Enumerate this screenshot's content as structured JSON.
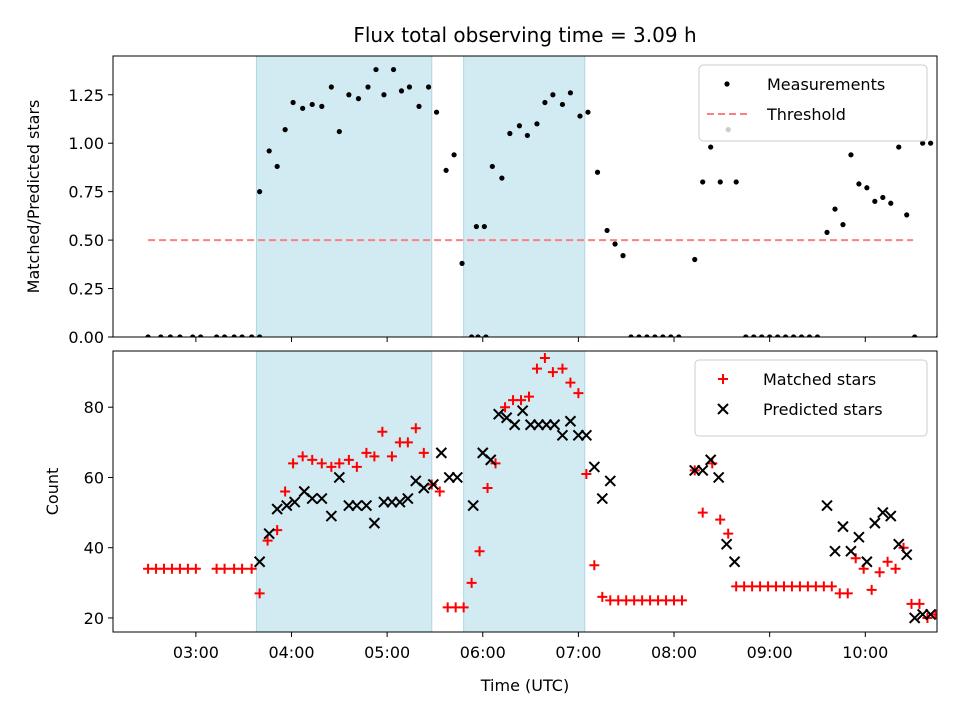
{
  "figure": {
    "title": "Flux total observing time = 3.09 h",
    "xlabel": "Time (UTC)"
  },
  "chart_data": [
    {
      "type": "scatter",
      "panel": "top",
      "ylabel": "Matched/Predicted stars",
      "x_domain": [
        "02:08",
        "10:45"
      ],
      "ylim": [
        0,
        1.45
      ],
      "yticks": [
        0,
        0.25,
        0.5,
        0.75,
        1.0,
        1.25
      ],
      "ytick_labels": [
        "0.00",
        "0.25",
        "0.50",
        "0.75",
        "1.00",
        "1.25"
      ],
      "shaded_intervals": [
        [
          "03:38",
          "05:28"
        ],
        [
          "05:48",
          "07:04"
        ]
      ],
      "shade_color": "#add8e6",
      "legend_position": "top-right",
      "series": [
        {
          "name": "Measurements",
          "marker": "dot",
          "color": "#000000",
          "points": [
            [
              "02:30",
              0
            ],
            [
              "02:38",
              0
            ],
            [
              "02:44",
              0
            ],
            [
              "02:50",
              0
            ],
            [
              "02:58",
              0
            ],
            [
              "03:03",
              0
            ],
            [
              "03:13",
              0
            ],
            [
              "03:18",
              0
            ],
            [
              "03:24",
              0
            ],
            [
              "03:29",
              0
            ],
            [
              "03:35",
              0
            ],
            [
              "03:40",
              0
            ],
            [
              "03:40",
              0.75
            ],
            [
              "03:46",
              0.96
            ],
            [
              "03:51",
              0.88
            ],
            [
              "03:56",
              1.07
            ],
            [
              "04:01",
              1.21
            ],
            [
              "04:07",
              1.18
            ],
            [
              "04:13",
              1.2
            ],
            [
              "04:19",
              1.19
            ],
            [
              "04:25",
              1.29
            ],
            [
              "04:30",
              1.06
            ],
            [
              "04:36",
              1.25
            ],
            [
              "04:42",
              1.23
            ],
            [
              "04:48",
              1.29
            ],
            [
              "04:53",
              1.38
            ],
            [
              "04:58",
              1.25
            ],
            [
              "05:04",
              1.38
            ],
            [
              "05:09",
              1.27
            ],
            [
              "05:14",
              1.29
            ],
            [
              "05:20",
              1.19
            ],
            [
              "05:26",
              1.29
            ],
            [
              "05:31",
              1.16
            ],
            [
              "05:37",
              0.86
            ],
            [
              "05:42",
              0.94
            ],
            [
              "05:47",
              0.38
            ],
            [
              "05:53",
              0
            ],
            [
              "05:57",
              0
            ],
            [
              "06:02",
              0
            ],
            [
              "05:56",
              0.57
            ],
            [
              "06:01",
              0.57
            ],
            [
              "06:06",
              0.88
            ],
            [
              "06:12",
              0.82
            ],
            [
              "06:17",
              1.05
            ],
            [
              "06:23",
              1.09
            ],
            [
              "06:28",
              1.04
            ],
            [
              "06:34",
              1.1
            ],
            [
              "06:39",
              1.21
            ],
            [
              "06:44",
              1.25
            ],
            [
              "06:50",
              1.2
            ],
            [
              "06:55",
              1.26
            ],
            [
              "07:01",
              1.14
            ],
            [
              "07:06",
              1.16
            ],
            [
              "07:12",
              0.85
            ],
            [
              "07:18",
              0.55
            ],
            [
              "07:23",
              0.48
            ],
            [
              "07:28",
              0.42
            ],
            [
              "07:33",
              0
            ],
            [
              "07:38",
              0
            ],
            [
              "07:43",
              0
            ],
            [
              "07:48",
              0
            ],
            [
              "07:53",
              0
            ],
            [
              "07:58",
              0
            ],
            [
              "08:03",
              0
            ],
            [
              "08:13",
              0.4
            ],
            [
              "08:18",
              0.8
            ],
            [
              "08:23",
              0.98
            ],
            [
              "08:29",
              0.8
            ],
            [
              "08:34",
              1.07
            ],
            [
              "08:39",
              0.8
            ],
            [
              "08:45",
              0
            ],
            [
              "08:50",
              0
            ],
            [
              "08:55",
              0
            ],
            [
              "09:00",
              0
            ],
            [
              "09:05",
              0
            ],
            [
              "09:10",
              0
            ],
            [
              "09:15",
              0
            ],
            [
              "09:20",
              0
            ],
            [
              "09:25",
              0
            ],
            [
              "09:30",
              0
            ],
            [
              "09:36",
              0.54
            ],
            [
              "09:41",
              0.66
            ],
            [
              "09:46",
              0.58
            ],
            [
              "09:51",
              0.94
            ],
            [
              "09:56",
              0.79
            ],
            [
              "10:01",
              0.77
            ],
            [
              "10:06",
              0.7
            ],
            [
              "10:11",
              0.72
            ],
            [
              "10:16",
              0.69
            ],
            [
              "10:21",
              0.98
            ],
            [
              "10:26",
              0.63
            ],
            [
              "10:31",
              0
            ],
            [
              "10:36",
              1.0
            ],
            [
              "10:41",
              1.0
            ],
            [
              "10:46",
              0
            ]
          ]
        },
        {
          "name": "Threshold",
          "marker": "dashed-line",
          "color": "#ff7f7f",
          "points": [
            [
              "02:30",
              0.5
            ],
            [
              "10:30",
              0.5
            ]
          ]
        }
      ]
    },
    {
      "type": "scatter",
      "panel": "bottom",
      "ylabel": "Count",
      "x_domain": [
        "02:08",
        "10:45"
      ],
      "xticks": [
        "03:00",
        "04:00",
        "05:00",
        "06:00",
        "07:00",
        "08:00",
        "09:00",
        "10:00"
      ],
      "ylim": [
        16,
        96
      ],
      "yticks": [
        20,
        40,
        60,
        80
      ],
      "ytick_labels": [
        "20",
        "40",
        "60",
        "80"
      ],
      "shaded_intervals": [
        [
          "03:38",
          "05:28"
        ],
        [
          "05:48",
          "07:04"
        ]
      ],
      "shade_color": "#add8e6",
      "legend_position": "top-right",
      "series": [
        {
          "name": "Matched stars",
          "marker": "plus",
          "color": "#ff0000",
          "points": [
            [
              "02:30",
              34
            ],
            [
              "02:35",
              34
            ],
            [
              "02:40",
              34
            ],
            [
              "02:45",
              34
            ],
            [
              "02:50",
              34
            ],
            [
              "02:55",
              34
            ],
            [
              "03:00",
              34
            ],
            [
              "03:13",
              34
            ],
            [
              "03:18",
              34
            ],
            [
              "03:24",
              34
            ],
            [
              "03:29",
              34
            ],
            [
              "03:35",
              34
            ],
            [
              "03:40",
              27
            ],
            [
              "03:45",
              42
            ],
            [
              "03:51",
              45
            ],
            [
              "03:56",
              56
            ],
            [
              "04:01",
              64
            ],
            [
              "04:07",
              66
            ],
            [
              "04:13",
              65
            ],
            [
              "04:19",
              64
            ],
            [
              "04:25",
              63
            ],
            [
              "04:30",
              64
            ],
            [
              "04:36",
              65
            ],
            [
              "04:41",
              63
            ],
            [
              "04:47",
              67
            ],
            [
              "04:52",
              66
            ],
            [
              "04:57",
              73
            ],
            [
              "05:03",
              66
            ],
            [
              "05:08",
              70
            ],
            [
              "05:13",
              70
            ],
            [
              "05:18",
              74
            ],
            [
              "05:23",
              67
            ],
            [
              "05:28",
              58
            ],
            [
              "05:33",
              56
            ],
            [
              "05:38",
              23
            ],
            [
              "05:43",
              23
            ],
            [
              "05:48",
              23
            ],
            [
              "05:53",
              30
            ],
            [
              "05:58",
              39
            ],
            [
              "06:03",
              57
            ],
            [
              "06:08",
              64
            ],
            [
              "06:14",
              80
            ],
            [
              "06:19",
              82
            ],
            [
              "06:24",
              82
            ],
            [
              "06:29",
              83
            ],
            [
              "06:34",
              91
            ],
            [
              "06:39",
              94
            ],
            [
              "06:44",
              90
            ],
            [
              "06:50",
              91
            ],
            [
              "06:55",
              87
            ],
            [
              "07:00",
              84
            ],
            [
              "07:05",
              61
            ],
            [
              "07:10",
              35
            ],
            [
              "07:15",
              26
            ],
            [
              "07:20",
              25
            ],
            [
              "07:25",
              25
            ],
            [
              "07:30",
              25
            ],
            [
              "07:35",
              25
            ],
            [
              "07:40",
              25
            ],
            [
              "07:45",
              25
            ],
            [
              "07:50",
              25
            ],
            [
              "07:55",
              25
            ],
            [
              "08:00",
              25
            ],
            [
              "08:05",
              25
            ],
            [
              "08:13",
              62
            ],
            [
              "08:18",
              50
            ],
            [
              "08:24",
              64
            ],
            [
              "08:29",
              48
            ],
            [
              "08:34",
              44
            ],
            [
              "08:39",
              29
            ],
            [
              "08:44",
              29
            ],
            [
              "08:49",
              29
            ],
            [
              "08:54",
              29
            ],
            [
              "08:59",
              29
            ],
            [
              "09:04",
              29
            ],
            [
              "09:09",
              29
            ],
            [
              "09:14",
              29
            ],
            [
              "09:19",
              29
            ],
            [
              "09:24",
              29
            ],
            [
              "09:29",
              29
            ],
            [
              "09:34",
              29
            ],
            [
              "09:39",
              29
            ],
            [
              "09:44",
              27
            ],
            [
              "09:49",
              27
            ],
            [
              "09:54",
              37
            ],
            [
              "09:59",
              34
            ],
            [
              "10:04",
              28
            ],
            [
              "10:09",
              33
            ],
            [
              "10:14",
              36
            ],
            [
              "10:19",
              34
            ],
            [
              "10:24",
              40
            ],
            [
              "10:29",
              24
            ],
            [
              "10:34",
              24
            ],
            [
              "10:39",
              20
            ],
            [
              "10:44",
              21
            ],
            [
              "10:48",
              21
            ]
          ]
        },
        {
          "name": "Predicted stars",
          "marker": "x",
          "color": "#000000",
          "points": [
            [
              "03:40",
              36
            ],
            [
              "03:46",
              44
            ],
            [
              "03:51",
              51
            ],
            [
              "03:57",
              52
            ],
            [
              "04:02",
              53
            ],
            [
              "04:08",
              56
            ],
            [
              "04:13",
              54
            ],
            [
              "04:19",
              54
            ],
            [
              "04:25",
              49
            ],
            [
              "04:30",
              60
            ],
            [
              "04:36",
              52
            ],
            [
              "04:41",
              52
            ],
            [
              "04:47",
              52
            ],
            [
              "04:52",
              47
            ],
            [
              "04:58",
              53
            ],
            [
              "05:03",
              53
            ],
            [
              "05:08",
              53
            ],
            [
              "05:13",
              54
            ],
            [
              "05:18",
              59
            ],
            [
              "05:23",
              57
            ],
            [
              "05:29",
              58
            ],
            [
              "05:34",
              67
            ],
            [
              "05:39",
              60
            ],
            [
              "05:44",
              60
            ],
            [
              "05:54",
              52
            ],
            [
              "06:00",
              67
            ],
            [
              "06:05",
              65
            ],
            [
              "06:10",
              78
            ],
            [
              "06:15",
              77
            ],
            [
              "06:20",
              75
            ],
            [
              "06:25",
              79
            ],
            [
              "06:30",
              75
            ],
            [
              "06:35",
              75
            ],
            [
              "06:40",
              75
            ],
            [
              "06:45",
              75
            ],
            [
              "06:50",
              72
            ],
            [
              "06:55",
              76
            ],
            [
              "07:00",
              72
            ],
            [
              "07:05",
              72
            ],
            [
              "07:10",
              63
            ],
            [
              "07:15",
              54
            ],
            [
              "07:20",
              59
            ],
            [
              "08:13",
              62
            ],
            [
              "08:18",
              62
            ],
            [
              "08:23",
              65
            ],
            [
              "08:28",
              60
            ],
            [
              "08:33",
              41
            ],
            [
              "08:38",
              36
            ],
            [
              "09:36",
              52
            ],
            [
              "09:41",
              39
            ],
            [
              "09:46",
              46
            ],
            [
              "09:51",
              39
            ],
            [
              "09:56",
              43
            ],
            [
              "10:01",
              36
            ],
            [
              "10:06",
              47
            ],
            [
              "10:11",
              50
            ],
            [
              "10:16",
              49
            ],
            [
              "10:21",
              41
            ],
            [
              "10:26",
              38
            ],
            [
              "10:31",
              20
            ],
            [
              "10:36",
              21
            ],
            [
              "10:41",
              21
            ]
          ]
        }
      ]
    }
  ]
}
